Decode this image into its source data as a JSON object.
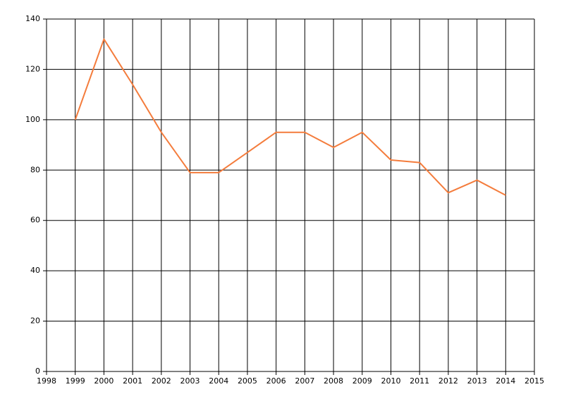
{
  "chart_data": {
    "type": "line",
    "x": [
      1999,
      2000,
      2001,
      2002,
      2003,
      2004,
      2005,
      2006,
      2007,
      2008,
      2009,
      2010,
      2011,
      2012,
      2013,
      2014
    ],
    "series": [
      {
        "color": "#f47c3c",
        "values": [
          100,
          132,
          114,
          95,
          79,
          79,
          87,
          95,
          95,
          89,
          95,
          84,
          83,
          71,
          76,
          70
        ]
      }
    ],
    "xlim": [
      1998,
      2015
    ],
    "xticks": [
      1998,
      1999,
      2000,
      2001,
      2002,
      2003,
      2004,
      2005,
      2006,
      2007,
      2008,
      2009,
      2010,
      2011,
      2012,
      2013,
      2014,
      2015
    ],
    "ylim": [
      0,
      140
    ],
    "yticks": [
      0,
      20,
      40,
      60,
      80,
      100,
      120,
      140
    ],
    "grid": true
  }
}
